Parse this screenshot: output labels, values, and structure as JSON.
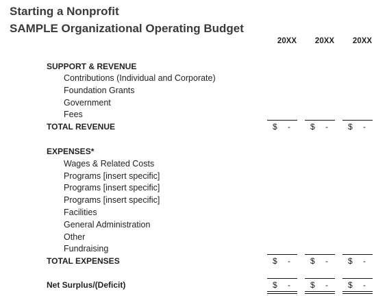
{
  "header": {
    "title_line1": "Starting a Nonprofit",
    "title_line2": "SAMPLE Organizational Operating Budget"
  },
  "columns": [
    "20XX",
    "20XX",
    "20XX"
  ],
  "revenue": {
    "heading": "SUPPORT & REVENUE",
    "items": [
      "Contributions (Individual and Corporate)",
      "Foundation Grants",
      "Government",
      "Fees"
    ],
    "total_label": "TOTAL REVENUE",
    "totals": [
      {
        "symbol": "$",
        "value": "-"
      },
      {
        "symbol": "$",
        "value": "-"
      },
      {
        "symbol": "$",
        "value": "-"
      }
    ]
  },
  "expenses": {
    "heading": "EXPENSES*",
    "items": [
      "Wages & Related Costs",
      "Programs [insert specific]",
      "Programs [insert specific]",
      "Programs [insert specific]",
      "Facilities",
      "General Administration",
      "Other",
      "Fundraising"
    ],
    "total_label": "TOTAL EXPENSES",
    "totals": [
      {
        "symbol": "$",
        "value": "-"
      },
      {
        "symbol": "$",
        "value": "-"
      },
      {
        "symbol": "$",
        "value": "-"
      }
    ]
  },
  "net": {
    "label": "Net Surplus/(Deficit)",
    "totals": [
      {
        "symbol": "$",
        "value": "-"
      },
      {
        "symbol": "$",
        "value": "-"
      },
      {
        "symbol": "$",
        "value": "-"
      }
    ]
  }
}
